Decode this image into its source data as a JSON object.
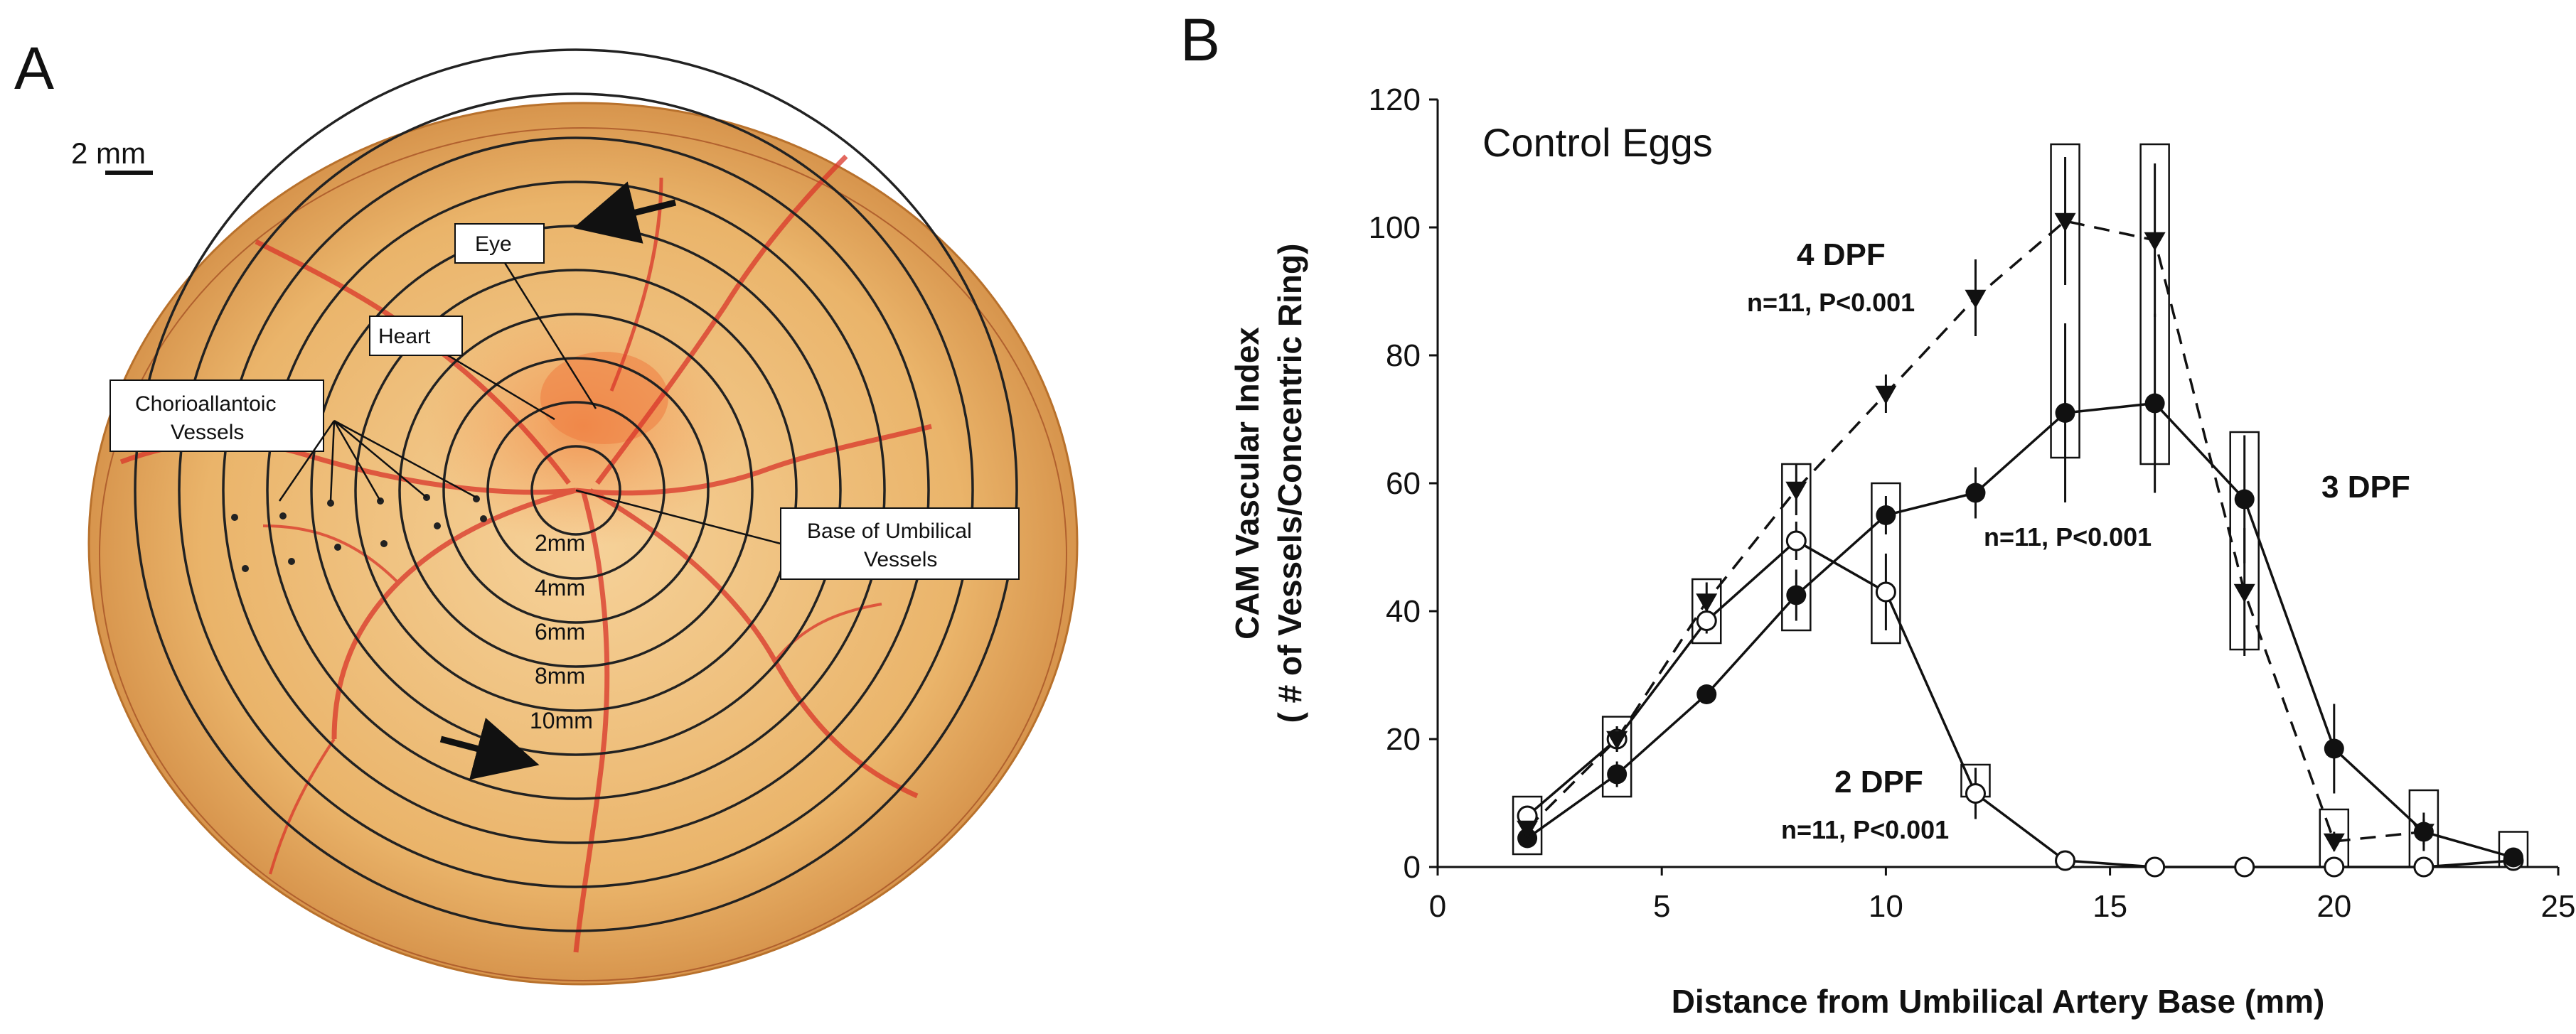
{
  "panel_a": {
    "letter": "A",
    "scale_bar": "2 mm",
    "callouts": {
      "eye": "Eye",
      "heart": "Heart",
      "vessels_line1": "Chorioallantoic",
      "vessels_line2": "Vessels",
      "umbilical_line1": "Base of Umbilical",
      "umbilical_line2": "Vessels"
    },
    "ring_labels": [
      "2mm",
      "4mm",
      "6mm",
      "8mm",
      "10mm"
    ],
    "colors": {
      "egg_center": "#f2c784",
      "egg_edge": "#d4893c",
      "vessel": "#d9352a",
      "ring": "#222222"
    }
  },
  "panel_b": {
    "letter": "B",
    "series_labels": {
      "dpf4": {
        "name": "4 DPF",
        "stat": "n=11, P<0.001"
      },
      "dpf3": {
        "name": "3 DPF",
        "stat": "n=11, P<0.001"
      },
      "dpf2": {
        "name": "2 DPF",
        "stat": "n=11, P<0.001"
      }
    }
  },
  "chart_data": {
    "type": "line",
    "title": "Control Eggs",
    "xlabel": "Distance from Umbilical Artery Base (mm)",
    "ylabel_line1": "CAM Vascular Index",
    "ylabel_line2": "( # of Vessels/Concentric Ring)",
    "xlim": [
      0,
      25
    ],
    "ylim": [
      0,
      120
    ],
    "xticks": [
      0,
      5,
      10,
      15,
      20,
      25
    ],
    "yticks": [
      0,
      20,
      40,
      60,
      80,
      100,
      120
    ],
    "grid": false,
    "series": [
      {
        "name": "2 DPF",
        "marker": "open-circle",
        "line": "solid",
        "x": [
          2,
          4,
          6,
          8,
          10,
          12,
          14,
          16,
          18,
          20,
          22,
          24
        ],
        "y": [
          8,
          20,
          38.5,
          51,
          43,
          11.5,
          1,
          0,
          0,
          0,
          0,
          1
        ],
        "err": [
          1.5,
          2,
          2,
          3,
          6,
          4,
          0.5,
          0.3,
          0.3,
          0.3,
          0.3,
          0.3
        ]
      },
      {
        "name": "3 DPF",
        "marker": "filled-circle",
        "line": "solid",
        "x": [
          2,
          4,
          6,
          8,
          10,
          12,
          14,
          16,
          18,
          20,
          22,
          24
        ],
        "y": [
          4.5,
          14.5,
          27,
          42.5,
          55,
          58.5,
          71,
          72.5,
          57.5,
          18.5,
          5.5,
          1.5
        ],
        "err": [
          1.5,
          2,
          1.5,
          4,
          3,
          4,
          14,
          14,
          10,
          7,
          3,
          1
        ]
      },
      {
        "name": "4 DPF",
        "marker": "filled-triangle-down",
        "line": "dashed",
        "x": [
          2,
          4,
          6,
          8,
          10,
          12,
          14,
          16,
          18,
          20,
          22
        ],
        "y": [
          6,
          20,
          41.5,
          59,
          74,
          89,
          101,
          98,
          43,
          4,
          5.5
        ],
        "err": [
          1.5,
          2,
          3,
          4,
          3,
          6,
          10,
          12,
          10,
          1.5,
          2
        ]
      }
    ],
    "significance_boxes": [
      {
        "x": 2,
        "y_low": 2,
        "y_high": 11
      },
      {
        "x": 4,
        "y_low": 11,
        "y_high": 23.5
      },
      {
        "x": 6,
        "y_low": 35,
        "y_high": 45
      },
      {
        "x": 8,
        "y_low": 37,
        "y_high": 63
      },
      {
        "x": 10,
        "y_low": 35,
        "y_high": 60
      },
      {
        "x": 12,
        "y_low": 11,
        "y_high": 16
      },
      {
        "x": 14,
        "y_low": 64,
        "y_high": 113
      },
      {
        "x": 16,
        "y_low": 63,
        "y_high": 113
      },
      {
        "x": 18,
        "y_low": 34,
        "y_high": 68
      },
      {
        "x": 20,
        "y_low": 0,
        "y_high": 9
      },
      {
        "x": 22,
        "y_low": 0,
        "y_high": 12
      },
      {
        "x": 24,
        "y_low": 0,
        "y_high": 5.5
      }
    ]
  }
}
